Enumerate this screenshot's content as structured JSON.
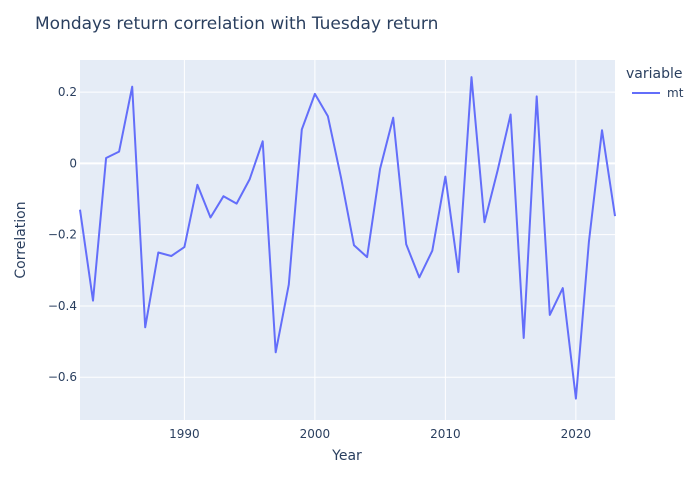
{
  "chart_data": {
    "type": "line",
    "title": "Mondays return correlation with Tuesday return",
    "xlabel": "Year",
    "ylabel": "Correlation",
    "legend_title": "variable",
    "legend_position": "top-right",
    "grid": true,
    "xlim": [
      1982,
      2023
    ],
    "ylim": [
      -0.72,
      0.29
    ],
    "x_ticks": [
      1990,
      2000,
      2010,
      2020
    ],
    "y_ticks": [
      0.2,
      0,
      -0.2,
      -0.4,
      -0.6
    ],
    "y_tick_labels": [
      "0.2",
      "0",
      "−0.2",
      "−0.4",
      "−0.6"
    ],
    "colors": {
      "plot_bg": "#e5ecf6",
      "grid": "#ffffff",
      "text": "#2a3f5f",
      "series": "#636efa"
    },
    "series": [
      {
        "name": "mt",
        "x": [
          1982,
          1983,
          1984,
          1985,
          1986,
          1987,
          1988,
          1989,
          1990,
          1991,
          1992,
          1993,
          1994,
          1995,
          1996,
          1997,
          1998,
          1999,
          2000,
          2001,
          2002,
          2003,
          2004,
          2005,
          2006,
          2007,
          2008,
          2009,
          2010,
          2011,
          2012,
          2013,
          2014,
          2015,
          2016,
          2017,
          2018,
          2019,
          2020,
          2021,
          2022,
          2023
        ],
        "values": [
          -0.13,
          -0.385,
          0.015,
          0.033,
          0.215,
          -0.46,
          -0.25,
          -0.26,
          -0.235,
          -0.06,
          -0.152,
          -0.092,
          -0.113,
          -0.045,
          0.062,
          -0.53,
          -0.34,
          0.095,
          0.195,
          0.132,
          -0.04,
          -0.23,
          -0.263,
          -0.015,
          0.128,
          -0.227,
          -0.32,
          -0.245,
          -0.037,
          -0.305,
          0.242,
          -0.165,
          -0.02,
          0.137,
          -0.49,
          0.188,
          -0.425,
          -0.35,
          -0.66,
          -0.22,
          0.093,
          -0.148
        ]
      }
    ]
  }
}
